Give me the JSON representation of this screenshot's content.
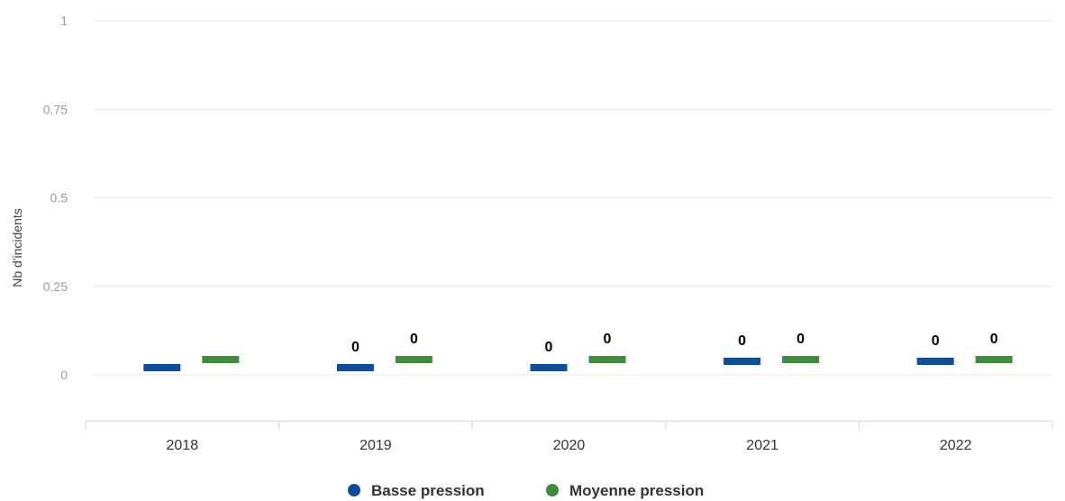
{
  "chart_data": {
    "type": "bar",
    "title": "",
    "xlabel": "",
    "ylabel": "Nb d'incidents",
    "ylim": [
      -0.13,
      1
    ],
    "yticks": [
      {
        "value": 1,
        "label": "1"
      },
      {
        "value": 0.75,
        "label": "0.75"
      },
      {
        "value": 0.5,
        "label": "0.5"
      },
      {
        "value": 0.25,
        "label": "0.25"
      },
      {
        "value": 0,
        "label": "0"
      }
    ],
    "categories": [
      "2018",
      "2019",
      "2020",
      "2021",
      "2022"
    ],
    "grid": true,
    "legend": "bottom-center",
    "series": [
      {
        "name": "Basse pression",
        "color": "#0b4f9c",
        "values": [
          0,
          0,
          0,
          0,
          0
        ],
        "data_labels": [
          "",
          "0",
          "0",
          "0",
          "0"
        ]
      },
      {
        "name": "Moyenne pression",
        "color": "#3d8b3d",
        "values": [
          0,
          0,
          0,
          0,
          0
        ],
        "data_labels": [
          "",
          "0",
          "0",
          "0",
          "0"
        ]
      }
    ]
  }
}
